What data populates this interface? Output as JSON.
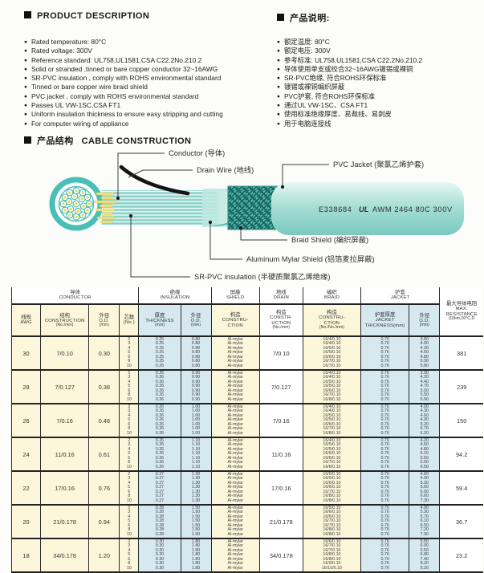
{
  "product_description": {
    "title": "PRODUCT  DESCRIPTION",
    "items": [
      "Rated temperature: 80°C",
      "Rated voltage: 300V",
      "Reference standard: UL758,UL1581,CSA C22.2No.210.2",
      "Solid or stranded ,tinned or bare copper conductor 32~16AWG",
      "SR-PVC insulation , comply with ROHS environmental standard",
      "Tinned or bare copper wire braid shield",
      "PVC jacket , comply with ROHS environmental standard",
      "Passes UL VW-1SC,CSA FT1",
      "Uniform insulation thickness to ensure easy stripping and cutting",
      "For computer wiring of appliance"
    ]
  },
  "product_description_cn": {
    "title": "产品说明:",
    "items": [
      "额定温度: 80°C",
      "额定电压: 300V",
      "参考标准: UL758,UL1581,CSA C22.2No.210.2",
      "导体使用单支或绞合32~16AWG镀锡或裸铜",
      "SR-PVC绝缘, 符合ROHS环保标准",
      "镀锡或裸铜编织屏蔽",
      "PVC护套, 符合ROHS环保标准",
      "通过UL VW-1SC、CSA FT1",
      "使用标准绝缘厚度、易裁线、易剥皮",
      "用于电脑连接线"
    ]
  },
  "construction": {
    "title_cn": "产品结构",
    "title_en": "CABLE  CONSTRUCTION",
    "labels": {
      "conductor": "Conductor (导体)",
      "drain": "Drain Wire (地线)",
      "jacket": "PVC Jacket (聚氯乙烯护套)",
      "braid": "Braid Shield (编织屏蔽)",
      "mylar": "Aluminum Mylar Shield (铝箔麦拉屏蔽)",
      "sr_pvc": "SR-PVC insulation (半硬质聚氯乙烯绝缘)"
    },
    "jacket_print": {
      "ul_file": "E338684",
      "ul_mark": "UL",
      "spec": "AWM 2464 80C 300V"
    }
  },
  "colors": {
    "teal": "#49bfb6",
    "teal_dark": "#2f9e95",
    "teal_light": "#9fdbd3",
    "strand_yellow": "#f3e27d",
    "table_yellow": "#fcf7da",
    "table_blue": "#d6e9f1"
  },
  "table": {
    "groups": [
      {
        "cn": "导体",
        "en": "CONDUCTOR",
        "span": 4
      },
      {
        "cn": "绝缘",
        "en": "INSULATION",
        "span": 2
      },
      {
        "cn": "屏蔽",
        "en": "SHIELD",
        "span": 1
      },
      {
        "cn": "地线",
        "en": "DRAIN",
        "span": 1
      },
      {
        "cn": "编织",
        "en": "BRAID",
        "span": 1
      },
      {
        "cn": "护套",
        "en": "JACKET",
        "span": 2
      }
    ],
    "columns": [
      {
        "cn": "线规",
        "en": "AWG",
        "sub": ""
      },
      {
        "cn": "结构",
        "en": "CONSTRUCTION",
        "sub": "(No./mm)"
      },
      {
        "cn": "外径",
        "en": "O.D.",
        "sub": "(mm)"
      },
      {
        "cn": "芯数",
        "en": "(No.)",
        "sub": ""
      },
      {
        "cn": "厚度",
        "en": "THICKNESS",
        "sub": "(mm)"
      },
      {
        "cn": "外径",
        "en": "O.D.",
        "sub": "(mm)"
      },
      {
        "cn": "构造",
        "en": "CONSTRU- CTION",
        "sub": ""
      },
      {
        "cn": "构造",
        "en": "CONSTR- UCTION",
        "sub": "(No./mm)"
      },
      {
        "cn": "构造",
        "en": "CONSTRU- CTION",
        "sub": "(No./No./mm)"
      },
      {
        "cn": "护套厚度",
        "en": "JACKET THICKNESS(mm)",
        "sub": ""
      },
      {
        "cn": "外径",
        "en": "O.D.",
        "sub": "(mm)"
      },
      {
        "cn": "最大导体电阻",
        "en": "MAX. RESISTANCE",
        "sub": "(Ω/km,20°C,D"
      }
    ],
    "rows": [
      {
        "awg": "30",
        "construction": "7/0.10",
        "od": "0.30",
        "cores": [
          "2",
          "3",
          "4",
          "5",
          "6",
          "8",
          "10"
        ],
        "ins_thickness": "0.25",
        "ins_od": "0.80",
        "shield": "Al-mylar",
        "drain": "7/0.10",
        "braid": [
          "16/4/0.10",
          "16/4/0.10",
          "16/5/0.10",
          "16/5/0.10",
          "16/6/0.10",
          "16/7/0.10",
          "16/7/0.10"
        ],
        "jacket_thickness": "0.76",
        "jacket_od": [
          "3.80",
          "4.00",
          "4.30",
          "4.50",
          "4.80",
          "5.30",
          "5.80"
        ],
        "resistance": "381"
      },
      {
        "awg": "28",
        "construction": "7/0.127",
        "od": "0.38",
        "cores": [
          "2",
          "3",
          "4",
          "5",
          "6",
          "8",
          "10"
        ],
        "ins_thickness": "0.26",
        "ins_od": "0.90",
        "shield": "Al-mylar",
        "drain": "7/0.127",
        "braid": [
          "16/4/0.10",
          "16/4/0.10",
          "16/5/0.10",
          "16/5/0.10",
          "16/6/0.10",
          "16/7/0.10",
          "16/8/0.10"
        ],
        "jacket_thickness": "0.76",
        "jacket_od": [
          "3.90",
          "4.20",
          "4.40",
          "4.70",
          "5.00",
          "5.50",
          "6.00"
        ],
        "resistance": "239"
      },
      {
        "awg": "26",
        "construction": "7/0.16",
        "od": "0.48",
        "cores": [
          "2",
          "3",
          "4",
          "5",
          "6",
          "8",
          "10"
        ],
        "ins_thickness": "0.26",
        "ins_od": "1.00",
        "shield": "Al-mylar",
        "drain": "7/0.16",
        "braid": [
          "16/4/0.10",
          "16/4/0.10",
          "16/5/0.10",
          "16/5/0.10",
          "16/6/0.10",
          "16/7/0.10",
          "16/8/0.10"
        ],
        "jacket_thickness": "0.76",
        "jacket_od": [
          "4.00",
          "4.30",
          "4.60",
          "4.90",
          "5.20",
          "5.70",
          "6.20"
        ],
        "resistance": "150"
      },
      {
        "awg": "24",
        "construction": "11/0.16",
        "od": "0.61",
        "cores": [
          "2",
          "3",
          "4",
          "5",
          "6",
          "8",
          "10"
        ],
        "ins_thickness": "0.26",
        "ins_od": "1.10",
        "shield": "Al-mylar",
        "drain": "11/0.16",
        "braid": [
          "16/4/0.10",
          "16/5/0.10",
          "16/5/0.10",
          "16/6/0.10",
          "16/6/0.10",
          "16/7/0.10",
          "16/8/0.10"
        ],
        "jacket_thickness": "0.76",
        "jacket_od": [
          "4.20",
          "4.50",
          "4.80",
          "5.10",
          "5.50",
          "6.00",
          "6.50"
        ],
        "resistance": "94.2"
      },
      {
        "awg": "22",
        "construction": "17/0.16",
        "od": "0.76",
        "cores": [
          "2",
          "3",
          "4",
          "5",
          "6",
          "8",
          "10"
        ],
        "ins_thickness": "0.27",
        "ins_od": "1.30",
        "shield": "Al-mylar",
        "drain": "17/0.16",
        "braid": [
          "16/5/0.10",
          "16/5/0.10",
          "16/6/0.10",
          "16/6/0.10",
          "16/7/0.10",
          "16/8/0.10",
          "16/8/0.10"
        ],
        "jacket_thickness": "0.76",
        "jacket_od": [
          "4.60",
          "4.90",
          "5.30",
          "5.60",
          "6.00",
          "6.60",
          "7.30"
        ],
        "resistance": "59.4"
      },
      {
        "awg": "20",
        "construction": "21/0.178",
        "od": "0.94",
        "cores": [
          "2",
          "3",
          "4",
          "5",
          "6",
          "8",
          "10"
        ],
        "ins_thickness": "0.28",
        "ins_od": "1.50",
        "shield": "Al-mylar",
        "drain": "21/0.178",
        "braid": [
          "16/5/0.10",
          "16/6/0.10",
          "16/6/0.10",
          "16/7/0.10",
          "16/7/0.10",
          "16/8/0.10",
          "16/8/0.10"
        ],
        "jacket_thickness": "0.76",
        "jacket_od": [
          "4.90",
          "5.30",
          "5.70",
          "6.10",
          "6.50",
          "7.20",
          "7.90"
        ],
        "resistance": "36.7"
      },
      {
        "awg": "18",
        "construction": "34/0.178",
        "od": "1.20",
        "cores": [
          "2",
          "3",
          "4",
          "5",
          "6",
          "8",
          "10"
        ],
        "ins_thickness": "0.30",
        "ins_od": "1.80",
        "shield": "Al-mylar",
        "drain": "34/0.178",
        "braid": [
          "16/6/0.10",
          "16/7/0.10",
          "16/7/0.10",
          "16/8/0.10",
          "16/8/0.10",
          "16/9/0.10",
          "16/10/0.10"
        ],
        "jacket_thickness": "0.76",
        "jacket_od": [
          "5.50",
          "6.00",
          "6.50",
          "6.90",
          "7.40",
          "8.20",
          "9.20"
        ],
        "resistance": "23.2"
      }
    ]
  }
}
